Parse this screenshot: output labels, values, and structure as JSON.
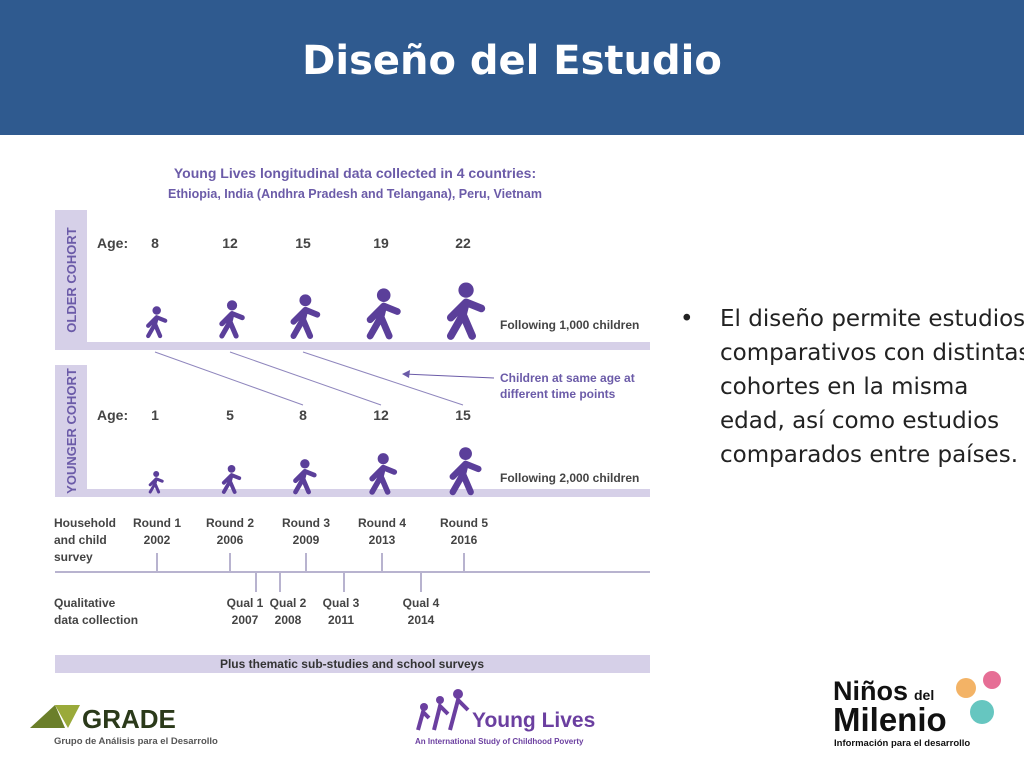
{
  "title": "Diseño del Estudio",
  "figure": {
    "heading": "Young Lives longitudinal data collected in 4 countries:",
    "countries": "Ethiopia, India (Andhra Pradesh and Telangana), Peru, Vietnam",
    "older_cohort": {
      "label": "OLDER COHORT",
      "age_label": "Age:",
      "ages": [
        8,
        12,
        15,
        19,
        22
      ],
      "note": "Following 1,000 children"
    },
    "same_age_note": [
      "Children at same age at",
      "different time points"
    ],
    "younger_cohort": {
      "label": "YOUNGER COHORT",
      "age_label": "Age:",
      "ages": [
        1,
        5,
        8,
        12,
        15
      ],
      "note": "Following 2,000 children"
    },
    "survey": {
      "label": [
        "Household",
        "and child",
        "survey"
      ],
      "rounds": [
        {
          "name": "Round 1",
          "year": 2002
        },
        {
          "name": "Round 2",
          "year": 2006
        },
        {
          "name": "Round 3",
          "year": 2009
        },
        {
          "name": "Round 4",
          "year": 2013
        },
        {
          "name": "Round 5",
          "year": 2016
        }
      ]
    },
    "qualitative": {
      "label": [
        "Qualitative",
        "data collection"
      ],
      "quals": [
        {
          "name": "Qual 1",
          "year": 2007
        },
        {
          "name": "Qual 2",
          "year": 2008
        },
        {
          "name": "Qual 3",
          "year": 2011
        },
        {
          "name": "Qual 4",
          "year": 2014
        }
      ]
    },
    "footer_band": "Plus thematic sub-studies and school surveys"
  },
  "bullet": "El diseño permite estudios comparativos con distintas cohortes en la misma edad, así como estudios comparados entre países.",
  "logos": {
    "grade": "GRADE",
    "grade_sub": "Grupo de Análisis para el Desarrollo",
    "young_lives": "Young Lives",
    "young_lives_sub": "An International Study of Childhood Poverty",
    "ninos": "Niños",
    "del": "del",
    "milenio": "Milenio",
    "ninos_sub": "Información para el desarrollo"
  }
}
